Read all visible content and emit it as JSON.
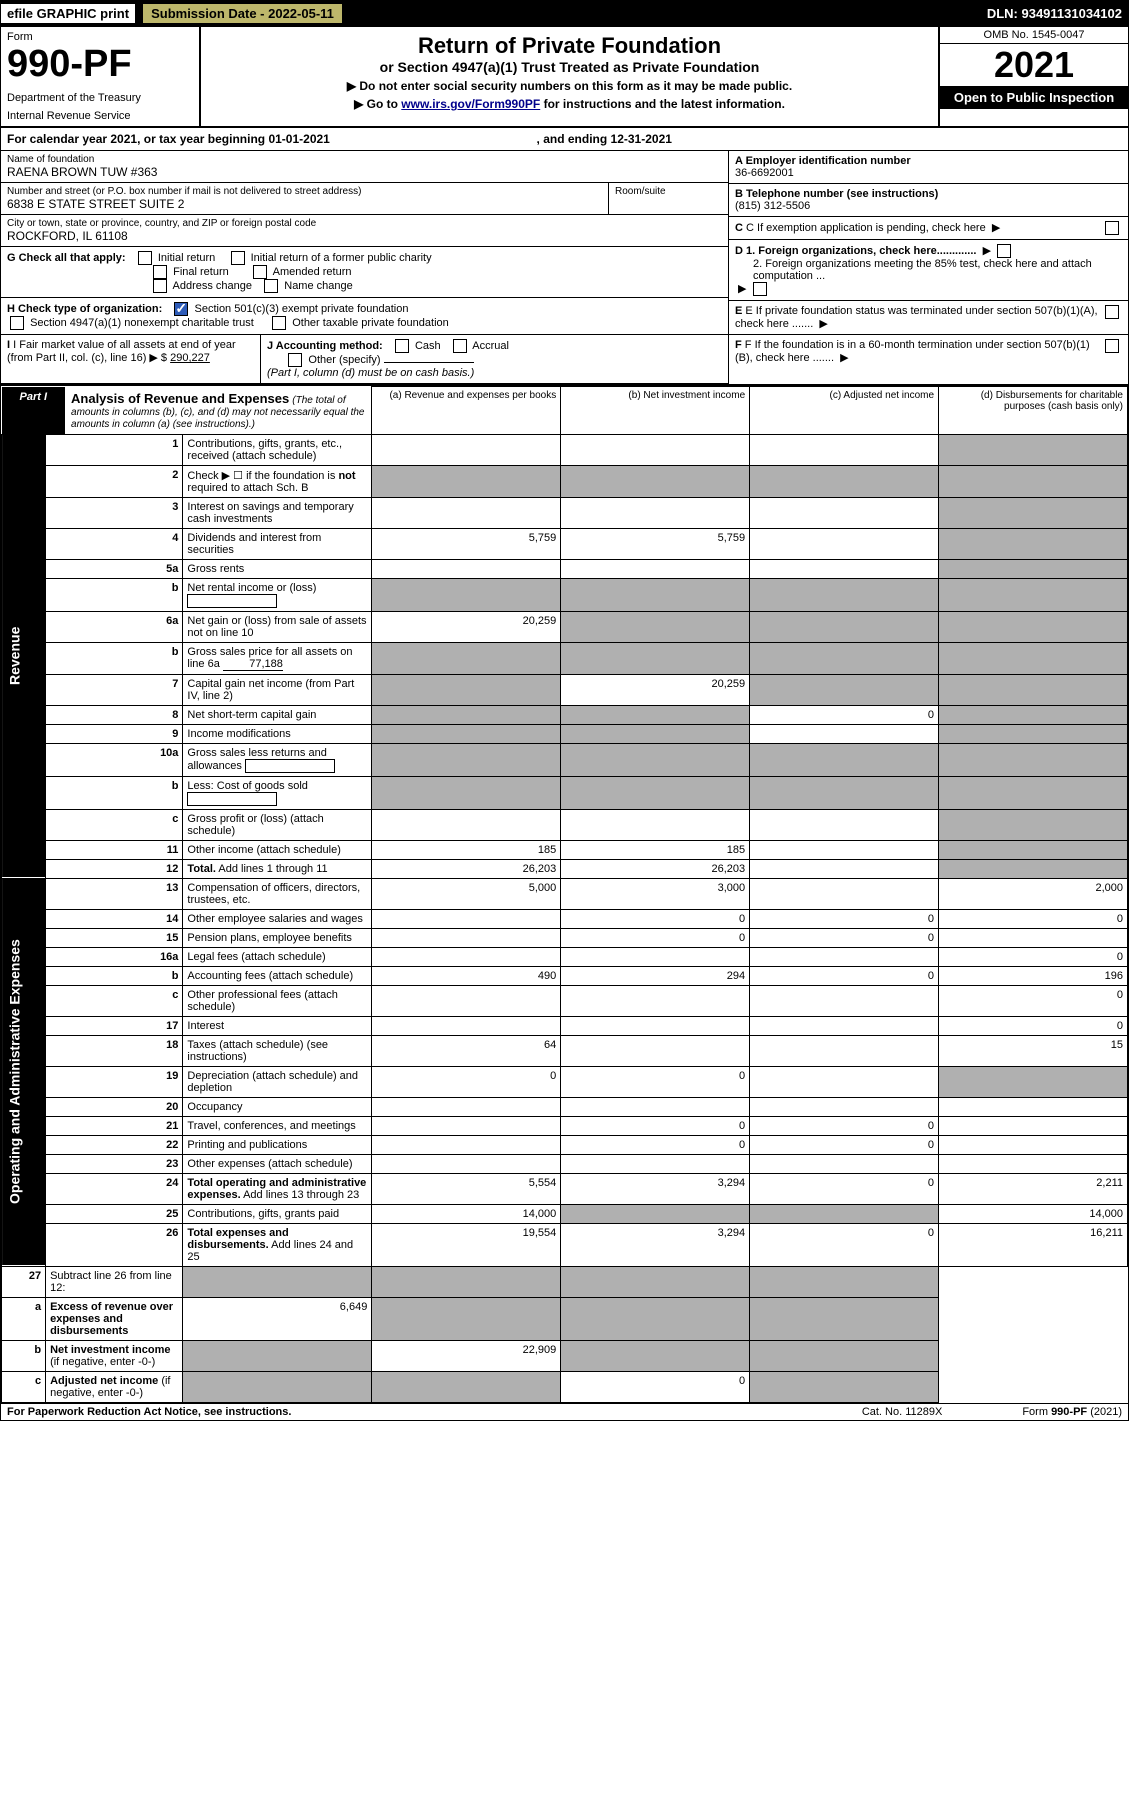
{
  "topbar": {
    "efile": "efile GRAPHIC print",
    "sub_label": "Submission Date - ",
    "sub_date": "2022-05-11",
    "dln_label": "DLN: ",
    "dln": "93491131034102"
  },
  "header": {
    "form_label": "Form",
    "form_num": "990-PF",
    "dept": "Department of the Treasury",
    "irs": "Internal Revenue Service",
    "title": "Return of Private Foundation",
    "subtitle": "or Section 4947(a)(1) Trust Treated as Private Foundation",
    "instr1": "▶ Do not enter social security numbers on this form as it may be made public.",
    "instr2": "▶ Go to ",
    "instr2_link": "www.irs.gov/Form990PF",
    "instr2_tail": " for instructions and the latest information.",
    "omb": "OMB No. 1545-0047",
    "year": "2021",
    "open": "Open to Public Inspection"
  },
  "calendar": {
    "text_a": "For calendar year 2021, or tax year beginning ",
    "begin": "01-01-2021",
    "text_b": "  , and ending ",
    "end": "12-31-2021"
  },
  "entity": {
    "name_label": "Name of foundation",
    "name": "RAENA BROWN TUW #363",
    "addr_label": "Number and street (or P.O. box number if mail is not delivered to street address)",
    "addr": "6838 E STATE STREET SUITE 2",
    "room_label": "Room/suite",
    "city_label": "City or town, state or province, country, and ZIP or foreign postal code",
    "city": "ROCKFORD, IL  61108",
    "ein_label": "A Employer identification number",
    "ein": "36-6692001",
    "phone_label": "B Telephone number (see instructions)",
    "phone": "(815) 312-5506",
    "c_label": "C If exemption application is pending, check here",
    "d1": "D 1. Foreign organizations, check here.............",
    "d2": "2. Foreign organizations meeting the 85% test, check here and attach computation ...",
    "e": "E  If private foundation status was terminated under section 507(b)(1)(A), check here .......",
    "f": "F  If the foundation is in a 60-month termination under section 507(b)(1)(B), check here .......",
    "g_label": "G Check all that apply:",
    "g_opts": [
      "Initial return",
      "Initial return of a former public charity",
      "Final return",
      "Amended return",
      "Address change",
      "Name change"
    ],
    "h_label": "H Check type of organization:",
    "h_501c3": "Section 501(c)(3) exempt private foundation",
    "h_4947": "Section 4947(a)(1) nonexempt charitable trust",
    "h_other": "Other taxable private foundation",
    "i_label": "I Fair market value of all assets at end of year (from Part II, col. (c), line 16) ▶ $",
    "i_val": "290,227",
    "j_label": "J Accounting method:",
    "j_cash": "Cash",
    "j_accrual": "Accrual",
    "j_other": "Other (specify)",
    "j_note": "(Part I, column (d) must be on cash basis.)"
  },
  "part1": {
    "tab": "Part I",
    "title": "Analysis of Revenue and Expenses",
    "note": "(The total of amounts in columns (b), (c), and (d) may not necessarily equal the amounts in column (a) (see instructions).)",
    "col_a": "(a)  Revenue and expenses per books",
    "col_b": "(b)  Net investment income",
    "col_c": "(c)  Adjusted net income",
    "col_d": "(d)  Disbursements for charitable purposes (cash basis only)",
    "rev_label": "Revenue",
    "exp_label": "Operating and Administrative Expenses"
  },
  "rows": {
    "revenue": [
      {
        "n": "1",
        "desc": "Contributions, gifts, grants, etc., received (attach schedule)",
        "a": "",
        "b": "",
        "c": "",
        "d": "",
        "d_grey": true
      },
      {
        "n": "2",
        "desc": "Check ▶ ☐ if the foundation is <b>not</b> required to attach Sch. B",
        "a": "",
        "b": "",
        "c": "",
        "d": "",
        "all_grey": true
      },
      {
        "n": "3",
        "desc": "Interest on savings and temporary cash investments",
        "a": "",
        "b": "",
        "c": "",
        "d": "",
        "d_grey": true
      },
      {
        "n": "4",
        "desc": "Dividends and interest from securities",
        "a": "5,759",
        "b": "5,759",
        "c": "",
        "d": "",
        "d_grey": true
      },
      {
        "n": "5a",
        "desc": "Gross rents",
        "a": "",
        "b": "",
        "c": "",
        "d": "",
        "d_grey": true
      },
      {
        "n": "b",
        "desc": "Net rental income or (loss)",
        "a": "",
        "b": "",
        "c": "",
        "d": "",
        "all_grey": true,
        "inline_box": true
      },
      {
        "n": "6a",
        "desc": "Net gain or (loss) from sale of assets not on line 10",
        "a": "20,259",
        "b": "",
        "c": "",
        "d": "",
        "bcd_grey": true
      },
      {
        "n": "b",
        "desc": "Gross sales price for all assets on line 6a",
        "inline_val": "77,188",
        "a": "",
        "b": "",
        "c": "",
        "d": "",
        "all_grey": true
      },
      {
        "n": "7",
        "desc": "Capital gain net income (from Part IV, line 2)",
        "a": "",
        "b": "20,259",
        "c": "",
        "d": "",
        "a_grey": true,
        "cd_grey": true
      },
      {
        "n": "8",
        "desc": "Net short-term capital gain",
        "a": "",
        "b": "",
        "c": "0",
        "d": "",
        "ab_grey": true,
        "d_grey": true
      },
      {
        "n": "9",
        "desc": "Income modifications",
        "a": "",
        "b": "",
        "c": "",
        "d": "",
        "ab_grey": true,
        "d_grey": true
      },
      {
        "n": "10a",
        "desc": "Gross sales less returns and allowances",
        "a": "",
        "b": "",
        "c": "",
        "d": "",
        "all_grey": true,
        "inline_box": true
      },
      {
        "n": "b",
        "desc": "Less: Cost of goods sold",
        "a": "",
        "b": "",
        "c": "",
        "d": "",
        "all_grey": true,
        "inline_box": true
      },
      {
        "n": "c",
        "desc": "Gross profit or (loss) (attach schedule)",
        "a": "",
        "b": "",
        "c": "",
        "d": "",
        "d_grey": true
      },
      {
        "n": "11",
        "desc": "Other income (attach schedule)",
        "a": "185",
        "b": "185",
        "c": "",
        "d": "",
        "d_grey": true
      },
      {
        "n": "12",
        "desc": "<b>Total.</b> Add lines 1 through 11",
        "a": "26,203",
        "b": "26,203",
        "c": "",
        "d": "",
        "d_grey": true
      }
    ],
    "expenses": [
      {
        "n": "13",
        "desc": "Compensation of officers, directors, trustees, etc.",
        "a": "5,000",
        "b": "3,000",
        "c": "",
        "d": "2,000"
      },
      {
        "n": "14",
        "desc": "Other employee salaries and wages",
        "a": "",
        "b": "0",
        "c": "0",
        "d": "0"
      },
      {
        "n": "15",
        "desc": "Pension plans, employee benefits",
        "a": "",
        "b": "0",
        "c": "0",
        "d": ""
      },
      {
        "n": "16a",
        "desc": "Legal fees (attach schedule)",
        "a": "",
        "b": "",
        "c": "",
        "d": "0"
      },
      {
        "n": "b",
        "desc": "Accounting fees (attach schedule)",
        "a": "490",
        "b": "294",
        "c": "0",
        "d": "196"
      },
      {
        "n": "c",
        "desc": "Other professional fees (attach schedule)",
        "a": "",
        "b": "",
        "c": "",
        "d": "0"
      },
      {
        "n": "17",
        "desc": "Interest",
        "a": "",
        "b": "",
        "c": "",
        "d": "0"
      },
      {
        "n": "18",
        "desc": "Taxes (attach schedule) (see instructions)",
        "a": "64",
        "b": "",
        "c": "",
        "d": "15"
      },
      {
        "n": "19",
        "desc": "Depreciation (attach schedule) and depletion",
        "a": "0",
        "b": "0",
        "c": "",
        "d": "",
        "d_grey": true
      },
      {
        "n": "20",
        "desc": "Occupancy",
        "a": "",
        "b": "",
        "c": "",
        "d": ""
      },
      {
        "n": "21",
        "desc": "Travel, conferences, and meetings",
        "a": "",
        "b": "0",
        "c": "0",
        "d": ""
      },
      {
        "n": "22",
        "desc": "Printing and publications",
        "a": "",
        "b": "0",
        "c": "0",
        "d": ""
      },
      {
        "n": "23",
        "desc": "Other expenses (attach schedule)",
        "a": "",
        "b": "",
        "c": "",
        "d": ""
      },
      {
        "n": "24",
        "desc": "<b>Total operating and administrative expenses.</b> Add lines 13 through 23",
        "a": "5,554",
        "b": "3,294",
        "c": "0",
        "d": "2,211"
      },
      {
        "n": "25",
        "desc": "Contributions, gifts, grants paid",
        "a": "14,000",
        "b": "",
        "c": "",
        "d": "14,000",
        "bc_grey": true
      },
      {
        "n": "26",
        "desc": "<b>Total expenses and disbursements.</b> Add lines 24 and 25",
        "a": "19,554",
        "b": "3,294",
        "c": "0",
        "d": "16,211"
      }
    ],
    "bottom": [
      {
        "n": "27",
        "desc": "Subtract line 26 from line 12:",
        "a": "",
        "b": "",
        "c": "",
        "d": "",
        "all_grey": true
      },
      {
        "n": "a",
        "desc": "<b>Excess of revenue over expenses and disbursements</b>",
        "a": "6,649",
        "b": "",
        "c": "",
        "d": "",
        "bcd_grey": true
      },
      {
        "n": "b",
        "desc": "<b>Net investment income</b> (if negative, enter -0-)",
        "a": "",
        "b": "22,909",
        "c": "",
        "d": "",
        "a_grey": true,
        "cd_grey": true
      },
      {
        "n": "c",
        "desc": "<b>Adjusted net income</b> (if negative, enter -0-)",
        "a": "",
        "b": "",
        "c": "0",
        "d": "",
        "ab_grey": true,
        "d_grey": true
      }
    ]
  },
  "footer": {
    "left": "For Paperwork Reduction Act Notice, see instructions.",
    "center": "Cat. No. 11289X",
    "right": "Form 990-PF (2021)"
  },
  "colors": {
    "black": "#000000",
    "sub_bg": "#bdb76b",
    "grey_cell": "#b0b0b0",
    "link": "#00008b",
    "check_fill": "#2e5cb8"
  }
}
